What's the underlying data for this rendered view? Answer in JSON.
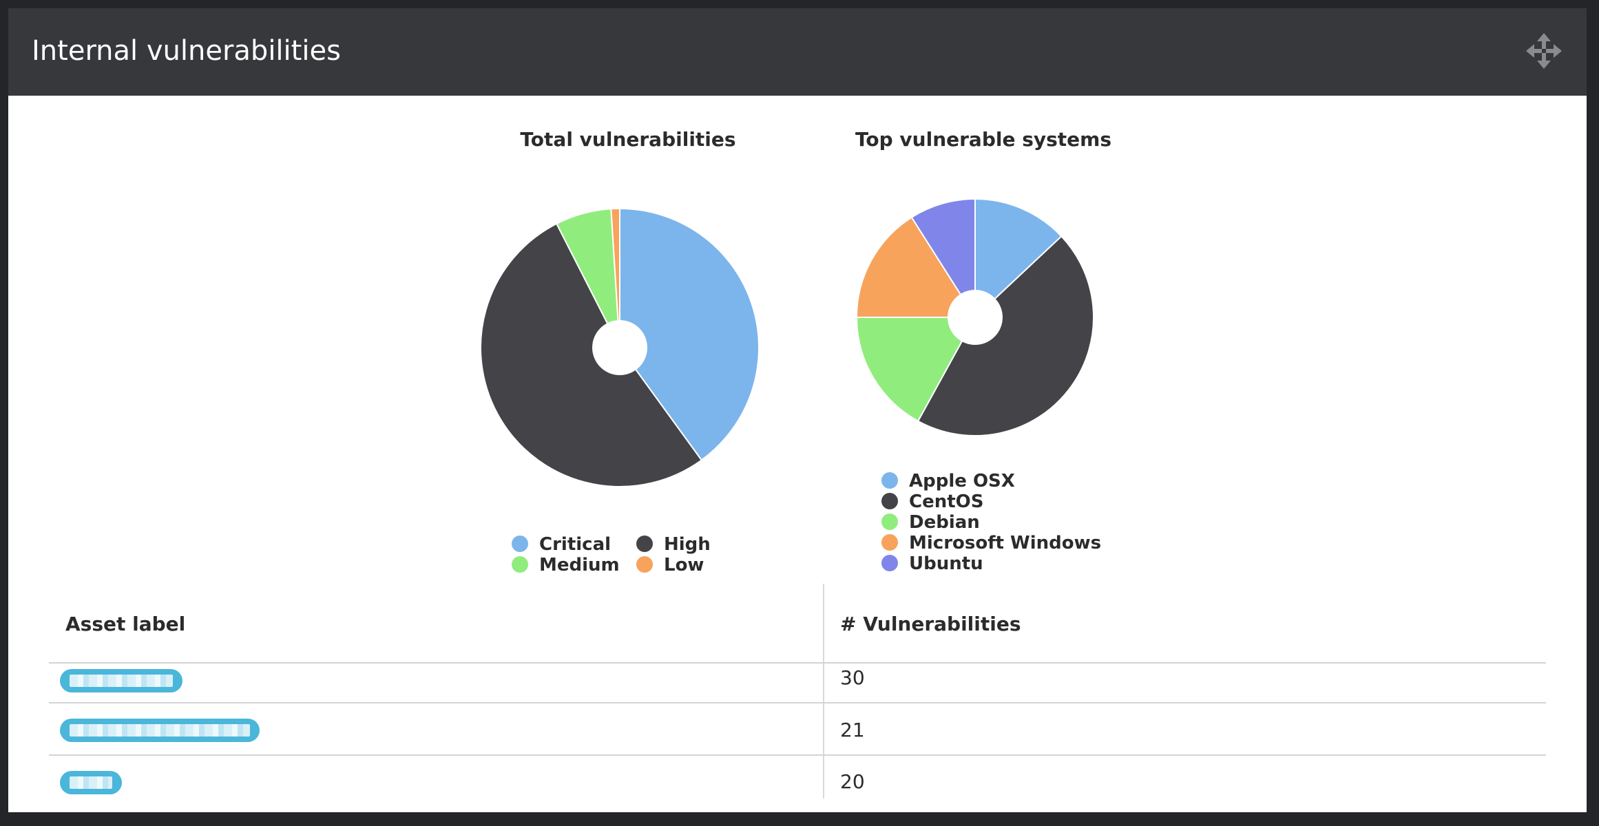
{
  "widget": {
    "title": "Internal vulnerabilities",
    "move_icon": "move-arrows-icon"
  },
  "chart_data": [
    {
      "type": "pie",
      "title": "Total vulnerabilities",
      "labels": [
        "Critical",
        "High",
        "Medium",
        "Low"
      ],
      "values": [
        40,
        52.5,
        6.5,
        1
      ],
      "colors": [
        "#7cb5ec",
        "#434348",
        "#90ed7d",
        "#f7a35c"
      ],
      "legend": "bottom"
    },
    {
      "type": "pie",
      "title": "Top vulnerable systems",
      "labels": [
        "Apple OSX",
        "CentOS",
        "Debian",
        "Microsoft Windows",
        "Ubuntu"
      ],
      "values": [
        13,
        45,
        17,
        16,
        9
      ],
      "colors": [
        "#7cb5ec",
        "#434348",
        "#90ed7d",
        "#f7a35c",
        "#8085e9"
      ],
      "legend": "bottom"
    }
  ],
  "table": {
    "headers": [
      "Asset label",
      "# Vulnerabilities"
    ],
    "rows": [
      {
        "value": "30"
      },
      {
        "value": "21"
      },
      {
        "value": "20"
      }
    ],
    "pill_color": "#4ab6da"
  }
}
